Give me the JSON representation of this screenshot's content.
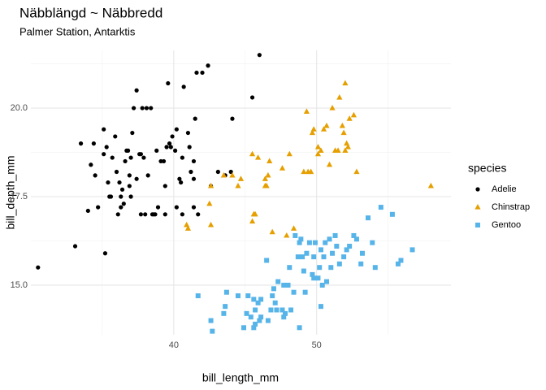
{
  "chart_data": {
    "type": "scatter",
    "title": "Näbblängd ~ Näbbredd",
    "subtitle": "Palmer Station, Antarktis",
    "x_label": "bill_length_mm",
    "y_label": "bill_depth_mm",
    "legend_title": "species",
    "legend_position": "right",
    "grid": true,
    "xlim": [
      30,
      59.4
    ],
    "ylim": [
      13.6,
      21.63
    ],
    "xticks": [
      40,
      50
    ],
    "xminor_ticks": [
      35,
      45,
      55
    ],
    "yticks": [
      {
        "value": 15,
        "label": "15.0"
      },
      {
        "value": 17.5,
        "label": "17.5"
      },
      {
        "value": 20,
        "label": "20.0"
      }
    ],
    "yminor_ticks": [
      16.25,
      18.75,
      21.25
    ],
    "series": [
      {
        "name": "Adelie",
        "color": "#000000",
        "shape": "circle",
        "x": [
          30.5,
          33.1,
          33.5,
          34.0,
          34.2,
          34.4,
          34.5,
          34.7,
          35.1,
          35.1,
          35.2,
          35.3,
          35.4,
          35.5,
          35.6,
          35.7,
          35.9,
          36.0,
          36.1,
          36.2,
          36.3,
          36.3,
          36.4,
          36.5,
          36.6,
          36.7,
          36.8,
          36.9,
          36.9,
          37.0,
          37.0,
          37.1,
          37.2,
          37.4,
          37.4,
          37.6,
          37.7,
          37.7,
          37.8,
          37.9,
          38.0,
          38.1,
          38.2,
          38.4,
          38.5,
          38.6,
          38.7,
          38.8,
          38.9,
          39.1,
          39.3,
          39.4,
          39.4,
          39.5,
          39.6,
          39.7,
          39.8,
          39.9,
          40.1,
          40.2,
          40.2,
          40.4,
          40.5,
          40.6,
          40.6,
          40.7,
          41.0,
          41.1,
          41.2,
          41.4,
          41.4,
          41.4,
          41.5,
          41.6,
          41.7,
          42.0,
          42.4,
          42.6,
          43.1,
          43.6,
          44.0,
          44.1,
          45.5,
          46.0
        ],
        "y": [
          15.5,
          16.1,
          19.0,
          17.1,
          18.4,
          19.0,
          18.1,
          17.2,
          18.7,
          19.4,
          15.9,
          18.9,
          17.9,
          17.5,
          17.5,
          18.6,
          19.2,
          18.2,
          17.0,
          17.9,
          17.5,
          17.2,
          17.7,
          17.3,
          18.5,
          18.8,
          18.8,
          17.8,
          18.1,
          17.5,
          18.6,
          19.3,
          20.0,
          20.5,
          18.0,
          18.7,
          17.0,
          18.7,
          20.0,
          18.6,
          17.0,
          20.0,
          18.1,
          20.0,
          17.0,
          17.0,
          17.0,
          18.8,
          17.2,
          18.5,
          18.5,
          17.0,
          17.8,
          18.9,
          20.7,
          19.0,
          18.9,
          19.2,
          18.8,
          17.2,
          19.4,
          18.0,
          17.9,
          18.6,
          17.0,
          20.6,
          19.3,
          18.9,
          18.2,
          18.5,
          18.0,
          17.2,
          19.7,
          21.0,
          17.0,
          21.0,
          21.2,
          17.8,
          18.2,
          18.1,
          18.2,
          19.7,
          20.3,
          21.5
        ]
      },
      {
        "name": "Chinstrap",
        "color": "#E69F00",
        "shape": "triangle",
        "x": [
          40.9,
          41.0,
          42.5,
          42.6,
          42.6,
          43.5,
          44.1,
          44.5,
          44.7,
          45.5,
          45.5,
          45.6,
          45.7,
          45.9,
          46.4,
          46.4,
          46.5,
          46.6,
          46.7,
          46.9,
          47.6,
          47.9,
          48.1,
          48.4,
          49.1,
          49.3,
          49.4,
          49.6,
          49.7,
          49.8,
          50.1,
          50.1,
          50.3,
          50.5,
          50.7,
          50.9,
          51.1,
          51.3,
          51.5,
          51.6,
          51.8,
          51.9,
          52.0,
          52.1,
          52.2,
          52.3,
          52.0,
          52.6,
          52.8,
          58.0
        ],
        "y": [
          16.7,
          16.6,
          17.3,
          16.7,
          17.8,
          18.1,
          18.1,
          17.8,
          18.0,
          18.7,
          16.8,
          17.0,
          17.0,
          18.6,
          17.8,
          18.0,
          17.8,
          18.1,
          18.5,
          16.5,
          18.3,
          16.4,
          18.7,
          16.6,
          18.2,
          19.9,
          18.2,
          18.2,
          19.3,
          19.4,
          18.7,
          18.9,
          18.8,
          19.4,
          19.5,
          18.4,
          20.0,
          18.8,
          18.8,
          20.3,
          19.5,
          19.3,
          18.8,
          19.0,
          18.9,
          19.7,
          20.7,
          19.8,
          18.2,
          17.8
        ]
      },
      {
        "name": "Gentoo",
        "color": "#56B4E9",
        "shape": "square",
        "x": [
          41.7,
          42.6,
          42.7,
          43.5,
          43.6,
          43.7,
          44.5,
          44.9,
          45.1,
          45.2,
          45.4,
          45.6,
          45.6,
          45.7,
          45.7,
          45.9,
          46.0,
          46.1,
          46.1,
          46.5,
          46.6,
          46.8,
          46.9,
          47.0,
          47.1,
          47.2,
          47.3,
          47.6,
          47.7,
          47.8,
          48.0,
          48.1,
          48.2,
          48.4,
          48.5,
          48.7,
          48.8,
          48.9,
          49.0,
          49.1,
          49.2,
          49.3,
          49.5,
          49.7,
          49.8,
          49.9,
          50.1,
          50.2,
          50.3,
          50.4,
          50.5,
          50.6,
          50.7,
          50.9,
          51.0,
          51.1,
          51.3,
          51.4,
          51.6,
          51.9,
          52.1,
          52.3,
          52.6,
          52.8,
          53.1,
          53.2,
          53.6,
          53.9,
          54.1,
          54.5,
          55.3,
          55.7,
          55.9,
          56.7,
          50.3,
          48.8,
          47.7,
          49.8
        ],
        "y": [
          14.7,
          14.0,
          13.7,
          14.2,
          14.4,
          14.8,
          14.7,
          13.8,
          14.2,
          14.7,
          14.1,
          14.6,
          13.8,
          13.9,
          14.3,
          14.5,
          14.0,
          14.6,
          14.1,
          15.7,
          14.0,
          14.3,
          14.7,
          14.9,
          14.5,
          14.3,
          15.1,
          14.3,
          15.0,
          14.2,
          15.0,
          15.5,
          14.3,
          14.8,
          16.4,
          15.8,
          16.2,
          16.3,
          15.8,
          15.4,
          14.8,
          15.9,
          16.2,
          15.3,
          15.8,
          16.2,
          15.2,
          15.5,
          16.0,
          15.0,
          15.8,
          16.2,
          15.1,
          16.3,
          15.5,
          15.9,
          16.4,
          16.1,
          15.6,
          15.8,
          16.0,
          16.1,
          16.4,
          16.3,
          15.6,
          15.9,
          16.9,
          16.2,
          15.5,
          17.2,
          17.0,
          15.6,
          15.7,
          16.0,
          14.4,
          13.8,
          14.1,
          15.2
        ]
      }
    ]
  }
}
